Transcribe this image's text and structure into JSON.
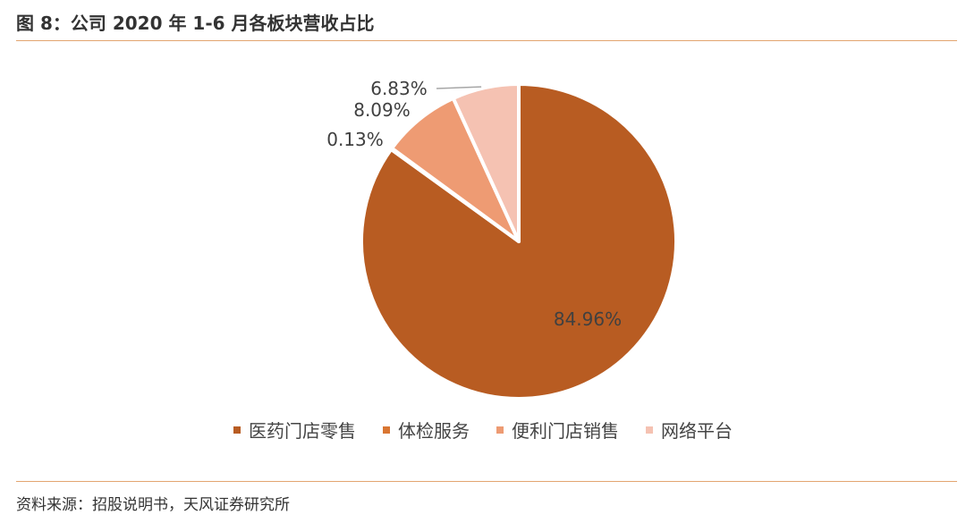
{
  "header": {
    "title": "图 8：公司 2020 年 1-6 月各板块营收占比"
  },
  "footer": {
    "source": "资料来源：招股说明书，天风证券研究所"
  },
  "colors": {
    "rule": "#e3a570"
  },
  "chart_data": {
    "type": "pie",
    "title": "",
    "start_angle_deg": 0,
    "direction": "clockwise",
    "legend_position": "bottom",
    "slices": [
      {
        "name": "医药门店零售",
        "value": 84.96,
        "label": "84.96%",
        "color": "#b85c22"
      },
      {
        "name": "体检服务",
        "value": 0.13,
        "label": "0.13%",
        "color": "#d97632"
      },
      {
        "name": "便利门店销售",
        "value": 8.09,
        "label": "8.09%",
        "color": "#ee9b73"
      },
      {
        "name": "网络平台",
        "value": 6.83,
        "label": "6.83%",
        "color": "#f5c2b2"
      }
    ]
  }
}
